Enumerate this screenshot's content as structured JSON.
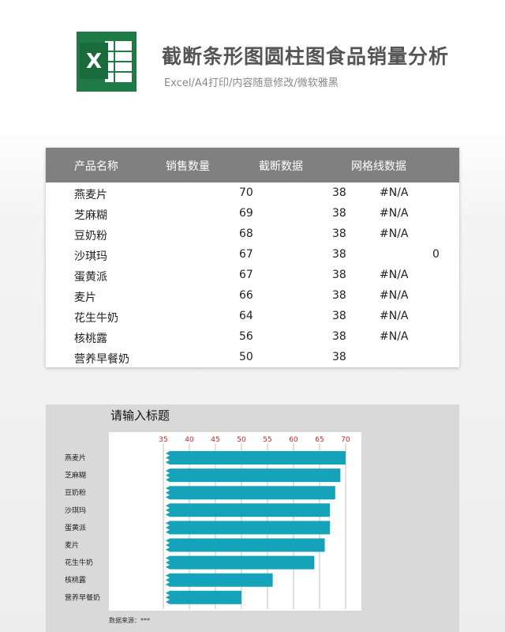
{
  "header": {
    "title": "截断条形图圆柱图食品销量分析",
    "subtitle": "Excel/A4打印/内容随意修改/微软雅黑",
    "logo_letter": "X"
  },
  "table": {
    "columns": [
      "产品名称",
      "销售数量",
      "截断数据",
      "网格线数据"
    ],
    "rows": [
      {
        "name": "燕麦片",
        "qty": "70",
        "cut": "38",
        "grid": "#N/A",
        "extra": ""
      },
      {
        "name": "芝麻糊",
        "qty": "69",
        "cut": "38",
        "grid": "#N/A",
        "extra": ""
      },
      {
        "name": "豆奶粉",
        "qty": "68",
        "cut": "38",
        "grid": "#N/A",
        "extra": ""
      },
      {
        "name": "沙琪玛",
        "qty": "67",
        "cut": "38",
        "grid": "",
        "extra": "0"
      },
      {
        "name": "蛋黄派",
        "qty": "67",
        "cut": "38",
        "grid": "#N/A",
        "extra": ""
      },
      {
        "name": "麦片",
        "qty": "66",
        "cut": "38",
        "grid": "#N/A",
        "extra": ""
      },
      {
        "name": "花生牛奶",
        "qty": "64",
        "cut": "38",
        "grid": "#N/A",
        "extra": ""
      },
      {
        "name": "核桃露",
        "qty": "56",
        "cut": "38",
        "grid": "#N/A",
        "extra": ""
      },
      {
        "name": "营养早餐奶",
        "qty": "50",
        "cut": "38",
        "grid": "",
        "extra": ""
      }
    ]
  },
  "chart": {
    "title": "请输入标题",
    "source": "数据来源：***"
  },
  "colors": {
    "bar": "#14a3b8",
    "axis_label": "#cc2222",
    "header_band": "#808080",
    "excel_green": "#1f7a45"
  },
  "chart_data": {
    "type": "bar",
    "orientation": "horizontal",
    "categories": [
      "燕麦片",
      "芝麻糊",
      "豆奶粉",
      "沙琪玛",
      "蛋黄派",
      "麦片",
      "花生牛奶",
      "核桃露",
      "营养早餐奶"
    ],
    "values": [
      70,
      69,
      68,
      67,
      67,
      66,
      64,
      56,
      50
    ],
    "xticks": [
      "35",
      "40",
      "45",
      "50",
      "55",
      "60",
      "65",
      "70"
    ],
    "xlim": [
      35,
      70
    ],
    "title": "请输入标题",
    "grid": true,
    "legend": "none",
    "truncated": true
  }
}
